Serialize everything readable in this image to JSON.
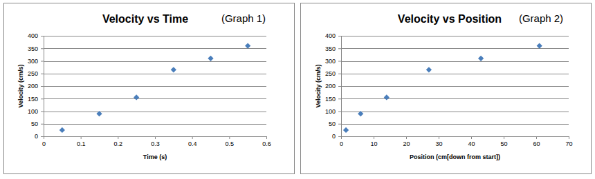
{
  "chart_data": [
    {
      "type": "scatter",
      "title": "Velocity vs Time",
      "annotation": "(Graph 1)",
      "x_label": "Time (s)",
      "y_label": "Velocity (cm/s)",
      "x": [
        0.05,
        0.15,
        0.25,
        0.35,
        0.45,
        0.55
      ],
      "values": [
        25,
        90,
        155,
        265,
        310,
        360
      ],
      "color": "#4a7ebb",
      "marker": "diamond",
      "xlim": [
        0,
        0.6
      ],
      "xticks": [
        0,
        0.1,
        0.2,
        0.3,
        0.4,
        0.5,
        0.6
      ],
      "ylim": [
        0,
        400
      ],
      "yticks": [
        0,
        50,
        100,
        150,
        200,
        250,
        300,
        350,
        400
      ],
      "grid": true
    },
    {
      "type": "scatter",
      "title": "Velocity vs Position",
      "annotation": "(Graph 2)",
      "x_label": "Position (cm[down from start])",
      "y_label": "Velocity (cm/s)",
      "x": [
        1.5,
        6,
        14,
        27,
        43,
        61
      ],
      "values": [
        25,
        90,
        155,
        265,
        310,
        360
      ],
      "color": "#4a7ebb",
      "marker": "diamond",
      "xlim": [
        0,
        70
      ],
      "xticks": [
        0,
        10,
        20,
        30,
        40,
        50,
        60,
        70
      ],
      "ylim": [
        0,
        400
      ],
      "yticks": [
        0,
        50,
        100,
        150,
        200,
        250,
        300,
        350,
        400
      ],
      "grid": true
    }
  ]
}
